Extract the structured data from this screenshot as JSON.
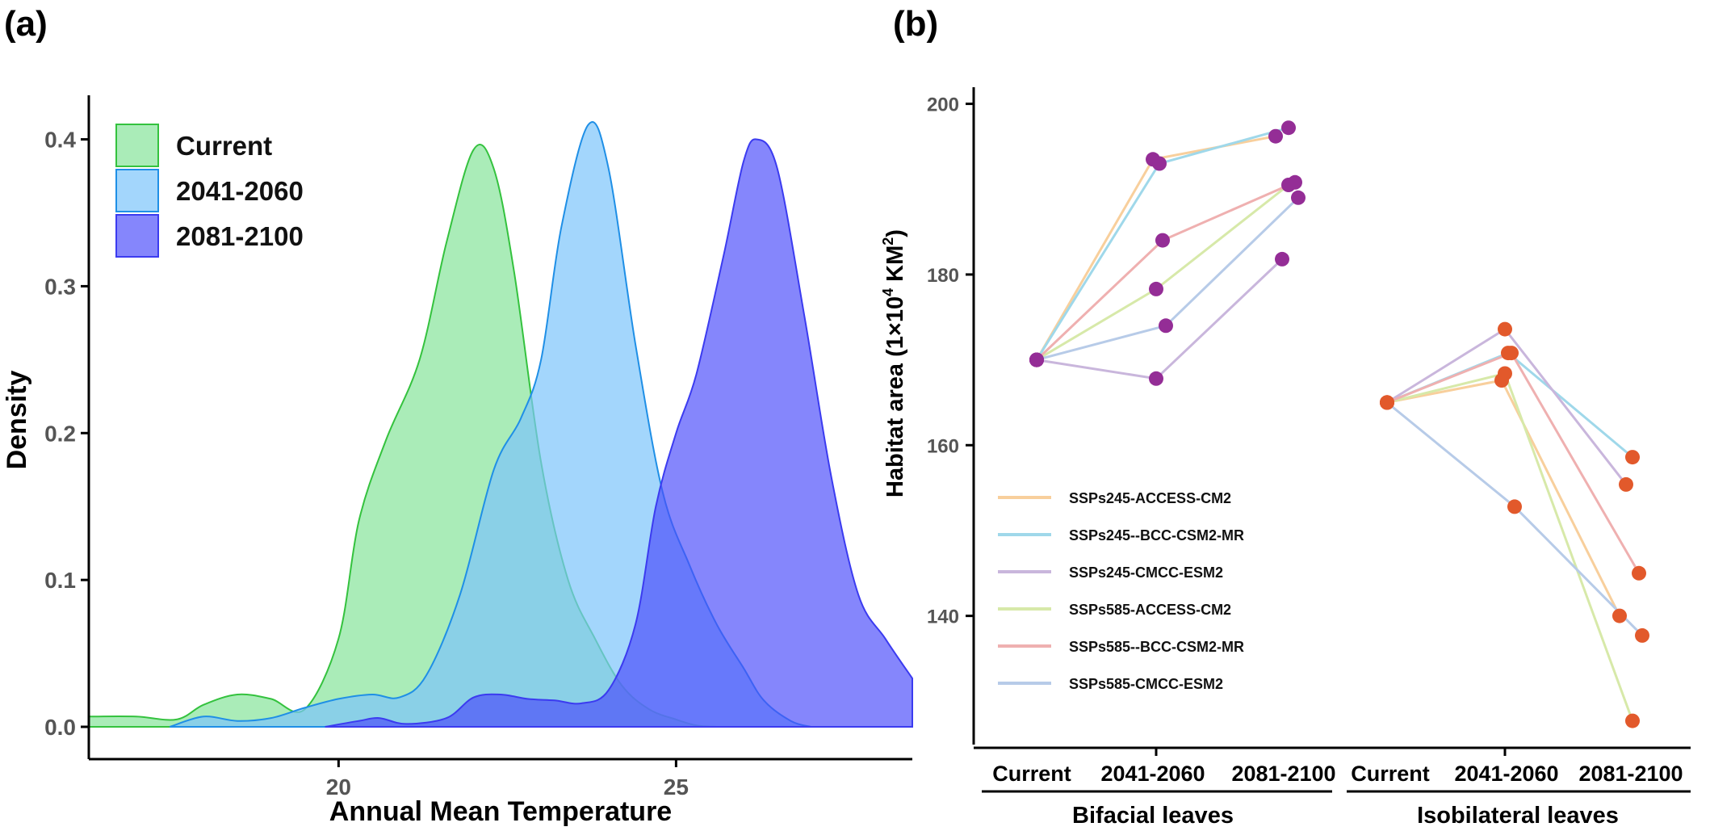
{
  "panels": {
    "a_label": "(a)",
    "b_label": "(b)"
  },
  "chart_data": [
    {
      "type": "area",
      "subtype": "density",
      "xlabel": "Annual Mean Temperature",
      "ylabel": "Density",
      "xlim": [
        16.3,
        28.5
      ],
      "ylim": [
        0,
        0.43
      ],
      "xticks": [
        20,
        25
      ],
      "yticks": [
        0.0,
        0.1,
        0.2,
        0.3,
        0.4
      ],
      "ytick_labels": [
        "0.0",
        "0.1",
        "0.2",
        "0.3",
        "0.4"
      ],
      "legend_position": "top-left",
      "series": [
        {
          "name": "Current",
          "fill": "#8ee6a0",
          "stroke": "#34c23e",
          "opacity": 0.75,
          "points": [
            [
              16.3,
              0.007
            ],
            [
              17.0,
              0.007
            ],
            [
              17.6,
              0.005
            ],
            [
              18.0,
              0.015
            ],
            [
              18.5,
              0.022
            ],
            [
              19.0,
              0.019
            ],
            [
              19.5,
              0.012
            ],
            [
              20.0,
              0.06
            ],
            [
              20.3,
              0.14
            ],
            [
              20.7,
              0.195
            ],
            [
              21.2,
              0.25
            ],
            [
              21.6,
              0.33
            ],
            [
              22.0,
              0.393
            ],
            [
              22.3,
              0.38
            ],
            [
              22.6,
              0.31
            ],
            [
              23.0,
              0.18
            ],
            [
              23.4,
              0.1
            ],
            [
              23.8,
              0.06
            ],
            [
              24.2,
              0.028
            ],
            [
              24.6,
              0.012
            ],
            [
              25.0,
              0.005
            ],
            [
              25.3,
              0.001
            ],
            [
              25.6,
              0.0
            ]
          ]
        },
        {
          "name": "2041-2060",
          "fill": "#7cc4fb",
          "stroke": "#1f8fe6",
          "opacity": 0.7,
          "points": [
            [
              17.5,
              0.0
            ],
            [
              18.0,
              0.007
            ],
            [
              18.5,
              0.004
            ],
            [
              19.0,
              0.006
            ],
            [
              19.5,
              0.013
            ],
            [
              20.0,
              0.019
            ],
            [
              20.5,
              0.022
            ],
            [
              20.9,
              0.02
            ],
            [
              21.3,
              0.035
            ],
            [
              21.8,
              0.09
            ],
            [
              22.3,
              0.175
            ],
            [
              22.7,
              0.21
            ],
            [
              23.0,
              0.25
            ],
            [
              23.3,
              0.34
            ],
            [
              23.7,
              0.41
            ],
            [
              24.0,
              0.38
            ],
            [
              24.4,
              0.26
            ],
            [
              24.8,
              0.16
            ],
            [
              25.2,
              0.11
            ],
            [
              25.6,
              0.07
            ],
            [
              26.0,
              0.04
            ],
            [
              26.3,
              0.018
            ],
            [
              26.7,
              0.004
            ],
            [
              27.0,
              0.0
            ]
          ]
        },
        {
          "name": "2081-2100",
          "fill": "#4b4cfa",
          "stroke": "#3b3bf0",
          "opacity": 0.68,
          "points": [
            [
              19.8,
              0.0
            ],
            [
              20.3,
              0.004
            ],
            [
              20.6,
              0.006
            ],
            [
              21.0,
              0.002
            ],
            [
              21.6,
              0.006
            ],
            [
              22.0,
              0.02
            ],
            [
              22.4,
              0.022
            ],
            [
              22.8,
              0.019
            ],
            [
              23.2,
              0.018
            ],
            [
              23.6,
              0.016
            ],
            [
              24.0,
              0.025
            ],
            [
              24.4,
              0.07
            ],
            [
              24.7,
              0.15
            ],
            [
              25.0,
              0.2
            ],
            [
              25.3,
              0.24
            ],
            [
              25.7,
              0.32
            ],
            [
              26.0,
              0.385
            ],
            [
              26.2,
              0.4
            ],
            [
              26.5,
              0.38
            ],
            [
              26.9,
              0.28
            ],
            [
              27.3,
              0.17
            ],
            [
              27.7,
              0.09
            ],
            [
              28.1,
              0.06
            ],
            [
              28.5,
              0.033
            ]
          ]
        }
      ]
    },
    {
      "type": "line",
      "subtype": "slope",
      "ylabel": "Habitat area (1×10",
      "ylabel_sup": "4",
      "ylabel_tail": " KM",
      "ylabel_sup2": "2",
      "ylabel_close": ")",
      "ylim": [
        127,
        201
      ],
      "yticks": [
        140,
        160,
        180,
        200
      ],
      "categories": [
        "Current",
        "2041-2060",
        "2081-2100",
        "Current",
        "2041-2060",
        "2081-2100"
      ],
      "groups": [
        "Bifacial leaves",
        "Isobilateral leaves"
      ],
      "legend_position": "left",
      "series": [
        {
          "name": "SSPs245-ACCESS-CM2",
          "color": "#f8cf9c",
          "bifacial": [
            170.0,
            193.5,
            196.2
          ],
          "isobilateral": [
            165.0,
            167.6,
            140.0
          ]
        },
        {
          "name": "SSPs245--BCC-CSM2-MR",
          "color": "#9fd8ea",
          "bifacial": [
            170.0,
            193.0,
            197.2
          ],
          "isobilateral": [
            165.0,
            170.8,
            158.6
          ]
        },
        {
          "name": "SSPs245-CMCC-ESM2",
          "color": "#c9b6dc",
          "bifacial": [
            170.0,
            167.8,
            181.8
          ],
          "isobilateral": [
            165.0,
            173.6,
            155.4
          ]
        },
        {
          "name": "SSPs585-ACCESS-CM2",
          "color": "#d7e9a9",
          "bifacial": [
            170.0,
            178.3,
            190.5
          ],
          "isobilateral": [
            165.0,
            168.4,
            127.7
          ]
        },
        {
          "name": "SSPs585--BCC-CSM2-MR",
          "color": "#efb0b0",
          "bifacial": [
            170.0,
            184.0,
            190.8
          ],
          "isobilateral": [
            165.0,
            170.8,
            145.0
          ]
        },
        {
          "name": "SSPs585-CMCC-ESM2",
          "color": "#b7cbe8",
          "bifacial": [
            170.0,
            174.0,
            189.0
          ],
          "isobilateral": [
            165.0,
            152.8,
            137.7
          ]
        }
      ],
      "marker_colors": {
        "bifacial": "#942d96",
        "isobilateral": "#e2592b"
      }
    }
  ]
}
